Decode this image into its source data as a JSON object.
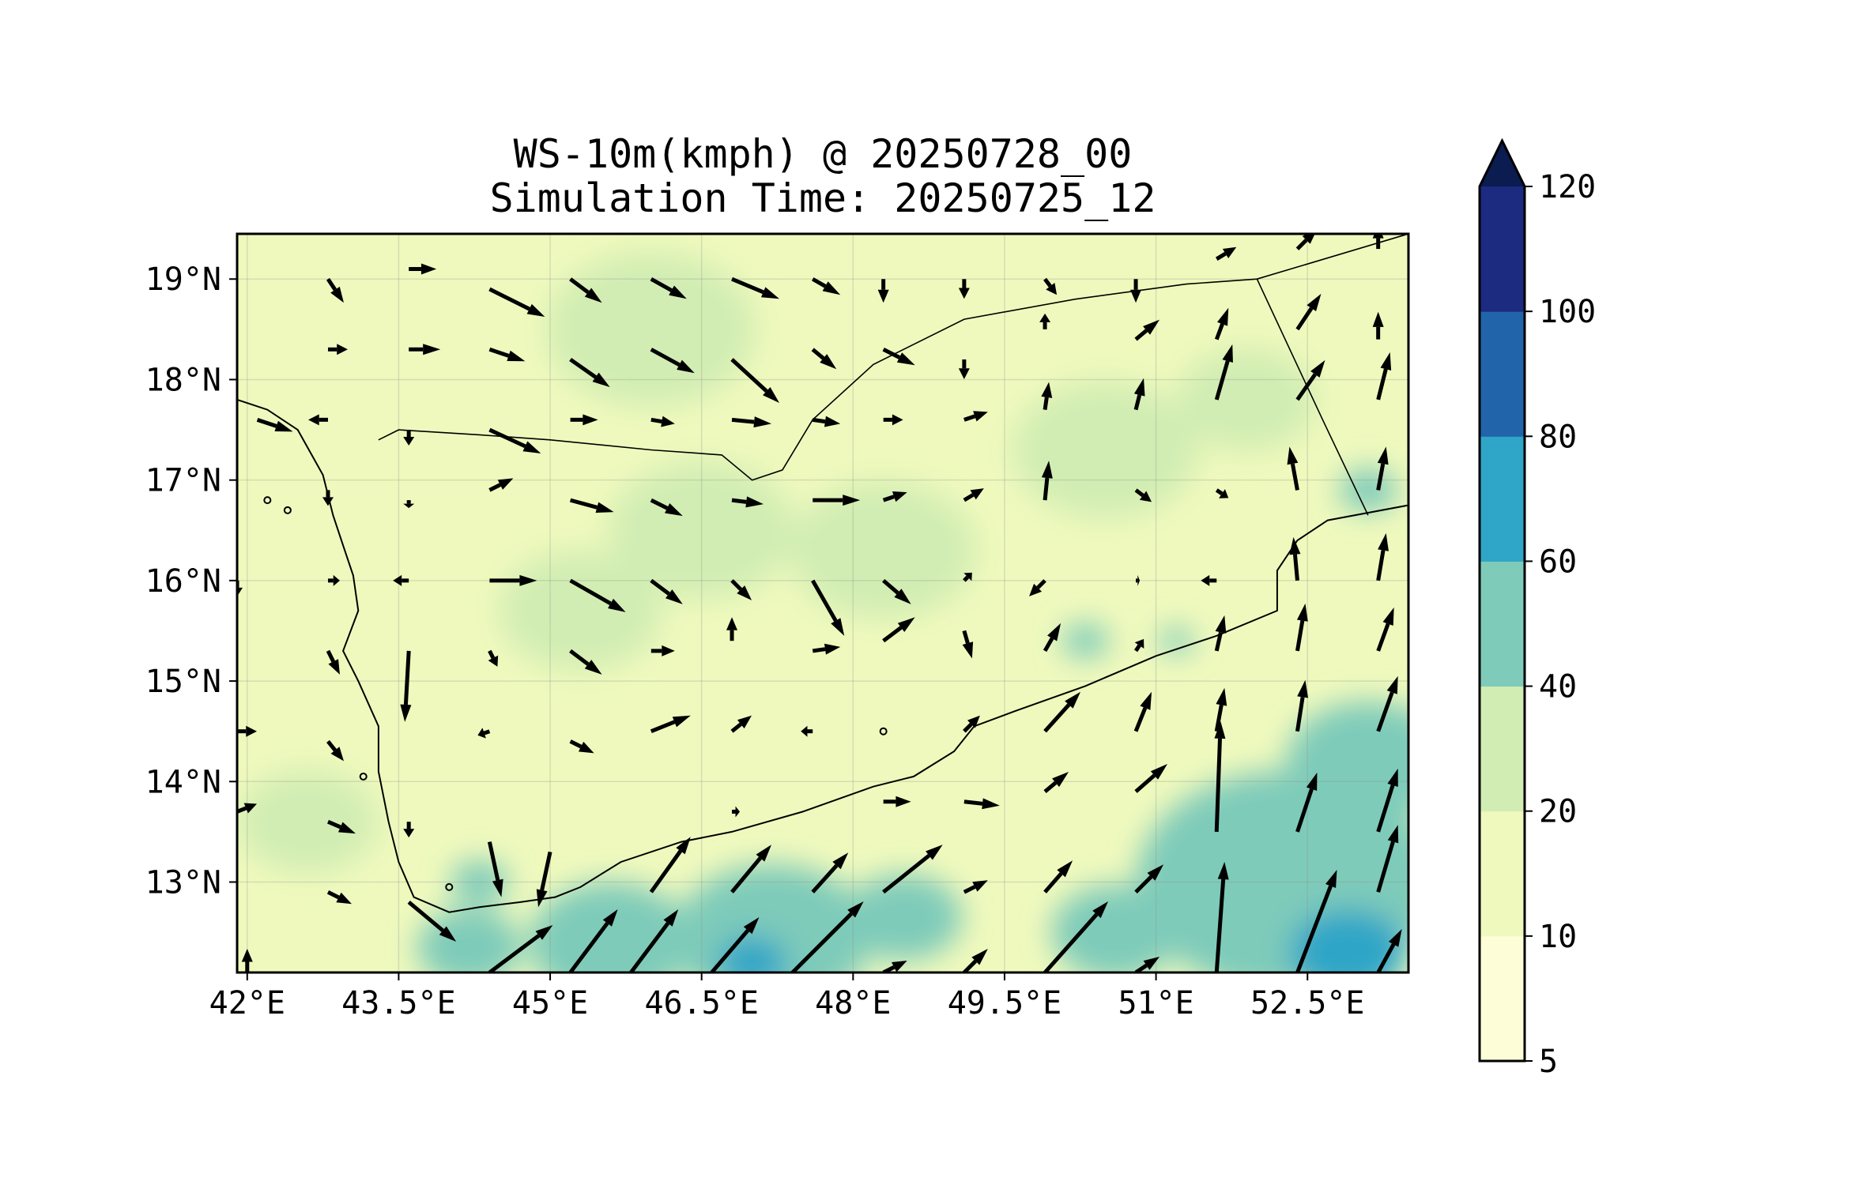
{
  "title": {
    "line1": "WS-10m(kmph) @ 20250728_00",
    "line2": "Simulation Time: 20250725_12"
  },
  "map": {
    "lon_range": [
      41.9,
      53.5
    ],
    "lat_range": [
      12.1,
      19.45
    ],
    "x_ticks": [
      {
        "value": 42.0,
        "label": "42°E"
      },
      {
        "value": 43.5,
        "label": "43.5°E"
      },
      {
        "value": 45.0,
        "label": "45°E"
      },
      {
        "value": 46.5,
        "label": "46.5°E"
      },
      {
        "value": 48.0,
        "label": "48°E"
      },
      {
        "value": 49.5,
        "label": "49.5°E"
      },
      {
        "value": 51.0,
        "label": "51°E"
      },
      {
        "value": 52.5,
        "label": "52.5°E"
      }
    ],
    "y_ticks": [
      {
        "value": 19,
        "label": "19°N"
      },
      {
        "value": 18,
        "label": "18°N"
      },
      {
        "value": 17,
        "label": "17°N"
      },
      {
        "value": 16,
        "label": "16°N"
      },
      {
        "value": 15,
        "label": "15°N"
      },
      {
        "value": 14,
        "label": "14°N"
      },
      {
        "value": 13,
        "label": "13°N"
      }
    ],
    "coastline": [
      [
        41.9,
        17.8
      ],
      [
        42.2,
        17.7
      ],
      [
        42.5,
        17.5
      ],
      [
        42.75,
        17.05
      ],
      [
        42.85,
        16.65
      ],
      [
        42.95,
        16.35
      ],
      [
        43.05,
        16.05
      ],
      [
        43.1,
        15.7
      ],
      [
        42.95,
        15.3
      ],
      [
        43.1,
        15.0
      ],
      [
        43.3,
        14.55
      ],
      [
        43.3,
        14.1
      ],
      [
        43.4,
        13.6
      ],
      [
        43.5,
        13.2
      ],
      [
        43.65,
        12.85
      ],
      [
        44.0,
        12.7
      ],
      [
        44.3,
        12.75
      ],
      [
        44.7,
        12.8
      ],
      [
        45.05,
        12.85
      ],
      [
        45.3,
        12.95
      ],
      [
        45.7,
        13.2
      ],
      [
        46.3,
        13.4
      ],
      [
        46.8,
        13.5
      ],
      [
        47.5,
        13.7
      ],
      [
        48.2,
        13.95
      ],
      [
        48.6,
        14.05
      ],
      [
        49.0,
        14.3
      ],
      [
        49.2,
        14.55
      ],
      [
        49.6,
        14.7
      ],
      [
        50.3,
        14.95
      ],
      [
        51.0,
        15.25
      ],
      [
        51.6,
        15.45
      ],
      [
        52.2,
        15.7
      ],
      [
        52.2,
        16.1
      ],
      [
        52.4,
        16.4
      ],
      [
        52.7,
        16.6
      ],
      [
        53.5,
        16.75
      ]
    ],
    "borders": [
      [
        [
          43.3,
          17.4
        ],
        [
          43.5,
          17.5
        ],
        [
          44.3,
          17.45
        ],
        [
          45.0,
          17.4
        ],
        [
          46.0,
          17.3
        ],
        [
          46.7,
          17.25
        ],
        [
          47.0,
          17.0
        ],
        [
          47.3,
          17.1
        ],
        [
          47.6,
          17.6
        ],
        [
          48.2,
          18.15
        ],
        [
          49.1,
          18.6
        ],
        [
          50.2,
          18.8
        ],
        [
          51.3,
          18.95
        ],
        [
          52.0,
          19.0
        ],
        [
          53.5,
          19.45
        ]
      ],
      [
        [
          52.0,
          19.0
        ],
        [
          52.65,
          17.6
        ],
        [
          53.1,
          16.65
        ]
      ]
    ],
    "islands": [
      [
        42.2,
        16.8
      ],
      [
        42.4,
        16.7
      ],
      [
        44.0,
        12.95
      ],
      [
        48.3,
        14.5
      ],
      [
        43.15,
        14.05
      ]
    ],
    "speed_patches": [
      {
        "lon": 44.2,
        "lat": 12.35,
        "r": 0.45,
        "speed": 45
      },
      {
        "lon": 45.6,
        "lat": 12.4,
        "r": 0.7,
        "speed": 50
      },
      {
        "lon": 47.2,
        "lat": 12.45,
        "r": 0.85,
        "speed": 50
      },
      {
        "lon": 48.5,
        "lat": 12.65,
        "r": 0.5,
        "speed": 45
      },
      {
        "lon": 47.0,
        "lat": 12.2,
        "r": 0.3,
        "speed": 65
      },
      {
        "lon": 52.3,
        "lat": 13.0,
        "r": 1.3,
        "speed": 50
      },
      {
        "lon": 53.1,
        "lat": 14.2,
        "r": 0.7,
        "speed": 45
      },
      {
        "lon": 52.9,
        "lat": 12.3,
        "r": 0.5,
        "speed": 65
      },
      {
        "lon": 50.6,
        "lat": 12.5,
        "r": 0.55,
        "speed": 40
      },
      {
        "lon": 44.3,
        "lat": 13.0,
        "r": 0.25,
        "speed": 45
      },
      {
        "lon": 51.9,
        "lat": 17.8,
        "r": 0.6,
        "speed": 30
      },
      {
        "lon": 50.5,
        "lat": 17.3,
        "r": 0.8,
        "speed": 25
      },
      {
        "lon": 46.0,
        "lat": 18.5,
        "r": 0.9,
        "speed": 25
      },
      {
        "lon": 46.5,
        "lat": 16.5,
        "r": 0.8,
        "speed": 25
      },
      {
        "lon": 48.3,
        "lat": 16.3,
        "r": 0.8,
        "speed": 25
      },
      {
        "lon": 45.3,
        "lat": 15.7,
        "r": 0.7,
        "speed": 25
      },
      {
        "lon": 42.6,
        "lat": 13.6,
        "r": 0.6,
        "speed": 25
      },
      {
        "lon": 53.1,
        "lat": 16.9,
        "r": 0.25,
        "speed": 45
      },
      {
        "lon": 51.2,
        "lat": 15.4,
        "r": 0.15,
        "speed": 45
      },
      {
        "lon": 50.3,
        "lat": 15.4,
        "r": 0.2,
        "speed": 45
      }
    ],
    "wind_vectors": [
      {
        "lon": 42.8,
        "lat": 19.0,
        "u": 0.2,
        "v": -0.3
      },
      {
        "lon": 43.6,
        "lat": 19.1,
        "u": 0.35,
        "v": 0.0
      },
      {
        "lon": 44.4,
        "lat": 18.9,
        "u": 0.7,
        "v": -0.35
      },
      {
        "lon": 45.2,
        "lat": 19.0,
        "u": 0.4,
        "v": -0.3
      },
      {
        "lon": 46.0,
        "lat": 19.0,
        "u": 0.45,
        "v": -0.25
      },
      {
        "lon": 46.8,
        "lat": 19.0,
        "u": 0.6,
        "v": -0.25
      },
      {
        "lon": 47.6,
        "lat": 19.0,
        "u": 0.35,
        "v": -0.2
      },
      {
        "lon": 48.3,
        "lat": 19.0,
        "u": 0.0,
        "v": -0.3
      },
      {
        "lon": 49.1,
        "lat": 19.0,
        "u": 0.0,
        "v": -0.25
      },
      {
        "lon": 49.9,
        "lat": 19.0,
        "u": 0.15,
        "v": -0.2
      },
      {
        "lon": 50.8,
        "lat": 19.0,
        "u": 0.0,
        "v": -0.3
      },
      {
        "lon": 51.6,
        "lat": 19.2,
        "u": 0.25,
        "v": 0.15
      },
      {
        "lon": 52.4,
        "lat": 19.3,
        "u": 0.25,
        "v": 0.25
      },
      {
        "lon": 53.2,
        "lat": 19.3,
        "u": 0.0,
        "v": 0.3
      },
      {
        "lon": 42.8,
        "lat": 18.3,
        "u": 0.25,
        "v": 0.0
      },
      {
        "lon": 43.6,
        "lat": 18.3,
        "u": 0.4,
        "v": 0.0
      },
      {
        "lon": 44.4,
        "lat": 18.3,
        "u": 0.45,
        "v": -0.15
      },
      {
        "lon": 45.2,
        "lat": 18.2,
        "u": 0.5,
        "v": -0.35
      },
      {
        "lon": 46.0,
        "lat": 18.3,
        "u": 0.55,
        "v": -0.3
      },
      {
        "lon": 46.8,
        "lat": 18.2,
        "u": 0.6,
        "v": -0.55
      },
      {
        "lon": 47.6,
        "lat": 18.3,
        "u": 0.3,
        "v": -0.25
      },
      {
        "lon": 48.3,
        "lat": 18.3,
        "u": 0.4,
        "v": -0.2
      },
      {
        "lon": 49.1,
        "lat": 18.2,
        "u": 0.0,
        "v": -0.25
      },
      {
        "lon": 49.9,
        "lat": 18.5,
        "u": 0.0,
        "v": 0.2
      },
      {
        "lon": 50.8,
        "lat": 18.4,
        "u": 0.3,
        "v": 0.25
      },
      {
        "lon": 51.6,
        "lat": 18.4,
        "u": 0.15,
        "v": 0.4
      },
      {
        "lon": 52.4,
        "lat": 18.5,
        "u": 0.3,
        "v": 0.45
      },
      {
        "lon": 53.2,
        "lat": 18.4,
        "u": 0.0,
        "v": 0.35
      },
      {
        "lon": 42.1,
        "lat": 17.6,
        "u": 0.45,
        "v": -0.15
      },
      {
        "lon": 42.8,
        "lat": 17.6,
        "u": -0.25,
        "v": 0.0
      },
      {
        "lon": 43.6,
        "lat": 17.5,
        "u": 0.0,
        "v": -0.2
      },
      {
        "lon": 44.4,
        "lat": 17.5,
        "u": 0.65,
        "v": -0.3
      },
      {
        "lon": 45.2,
        "lat": 17.6,
        "u": 0.35,
        "v": 0.0
      },
      {
        "lon": 46.0,
        "lat": 17.6,
        "u": 0.3,
        "v": -0.05
      },
      {
        "lon": 46.8,
        "lat": 17.6,
        "u": 0.5,
        "v": -0.05
      },
      {
        "lon": 47.6,
        "lat": 17.6,
        "u": 0.35,
        "v": -0.05
      },
      {
        "lon": 48.3,
        "lat": 17.6,
        "u": 0.25,
        "v": 0.0
      },
      {
        "lon": 49.1,
        "lat": 17.6,
        "u": 0.3,
        "v": 0.1
      },
      {
        "lon": 49.9,
        "lat": 17.7,
        "u": 0.05,
        "v": 0.35
      },
      {
        "lon": 50.8,
        "lat": 17.7,
        "u": 0.1,
        "v": 0.4
      },
      {
        "lon": 51.6,
        "lat": 17.8,
        "u": 0.2,
        "v": 0.7
      },
      {
        "lon": 52.4,
        "lat": 17.8,
        "u": 0.35,
        "v": 0.5
      },
      {
        "lon": 53.2,
        "lat": 17.8,
        "u": 0.15,
        "v": 0.6
      },
      {
        "lon": 42.8,
        "lat": 16.9,
        "u": 0.0,
        "v": -0.2
      },
      {
        "lon": 43.6,
        "lat": 16.8,
        "u": 0.0,
        "v": -0.1
      },
      {
        "lon": 44.4,
        "lat": 16.9,
        "u": 0.3,
        "v": 0.15
      },
      {
        "lon": 45.2,
        "lat": 16.8,
        "u": 0.55,
        "v": -0.15
      },
      {
        "lon": 46.0,
        "lat": 16.8,
        "u": 0.4,
        "v": -0.2
      },
      {
        "lon": 46.8,
        "lat": 16.8,
        "u": 0.4,
        "v": -0.05
      },
      {
        "lon": 47.6,
        "lat": 16.8,
        "u": 0.6,
        "v": 0.0
      },
      {
        "lon": 48.3,
        "lat": 16.8,
        "u": 0.3,
        "v": 0.1
      },
      {
        "lon": 49.1,
        "lat": 16.8,
        "u": 0.25,
        "v": 0.15
      },
      {
        "lon": 49.9,
        "lat": 16.8,
        "u": 0.05,
        "v": 0.5
      },
      {
        "lon": 50.8,
        "lat": 16.9,
        "u": 0.2,
        "v": -0.15
      },
      {
        "lon": 51.6,
        "lat": 16.9,
        "u": 0.15,
        "v": -0.1
      },
      {
        "lon": 52.4,
        "lat": 16.9,
        "u": -0.1,
        "v": 0.55
      },
      {
        "lon": 53.2,
        "lat": 16.9,
        "u": 0.1,
        "v": 0.55
      },
      {
        "lon": 41.9,
        "lat": 16.0,
        "u": 0.0,
        "v": -0.2
      },
      {
        "lon": 42.8,
        "lat": 16.0,
        "u": 0.15,
        "v": 0.0
      },
      {
        "lon": 43.6,
        "lat": 16.0,
        "u": -0.2,
        "v": 0.0
      },
      {
        "lon": 44.4,
        "lat": 16.0,
        "u": 0.6,
        "v": 0.0
      },
      {
        "lon": 45.2,
        "lat": 16.0,
        "u": 0.7,
        "v": -0.4
      },
      {
        "lon": 46.0,
        "lat": 16.0,
        "u": 0.4,
        "v": -0.3
      },
      {
        "lon": 46.8,
        "lat": 16.0,
        "u": 0.25,
        "v": -0.25
      },
      {
        "lon": 47.6,
        "lat": 16.0,
        "u": 0.4,
        "v": -0.7
      },
      {
        "lon": 48.3,
        "lat": 16.0,
        "u": 0.35,
        "v": -0.3
      },
      {
        "lon": 49.1,
        "lat": 16.0,
        "u": 0.1,
        "v": 0.1
      },
      {
        "lon": 49.9,
        "lat": 16.0,
        "u": -0.2,
        "v": -0.2
      },
      {
        "lon": 50.8,
        "lat": 16.0,
        "u": 0.05,
        "v": 0.0
      },
      {
        "lon": 51.6,
        "lat": 16.0,
        "u": -0.2,
        "v": 0.0
      },
      {
        "lon": 52.4,
        "lat": 16.0,
        "u": -0.05,
        "v": 0.55
      },
      {
        "lon": 53.2,
        "lat": 16.0,
        "u": 0.1,
        "v": 0.6
      },
      {
        "lon": 42.8,
        "lat": 15.3,
        "u": 0.15,
        "v": -0.3
      },
      {
        "lon": 43.6,
        "lat": 15.3,
        "u": -0.05,
        "v": -0.9
      },
      {
        "lon": 44.4,
        "lat": 15.3,
        "u": 0.1,
        "v": -0.2
      },
      {
        "lon": 45.2,
        "lat": 15.3,
        "u": 0.4,
        "v": -0.3
      },
      {
        "lon": 46.0,
        "lat": 15.3,
        "u": 0.3,
        "v": 0.0
      },
      {
        "lon": 46.8,
        "lat": 15.4,
        "u": 0.0,
        "v": 0.3
      },
      {
        "lon": 47.6,
        "lat": 15.3,
        "u": 0.35,
        "v": 0.05
      },
      {
        "lon": 48.3,
        "lat": 15.4,
        "u": 0.4,
        "v": 0.3
      },
      {
        "lon": 49.1,
        "lat": 15.5,
        "u": 0.1,
        "v": -0.35
      },
      {
        "lon": 49.9,
        "lat": 15.3,
        "u": 0.2,
        "v": 0.35
      },
      {
        "lon": 50.8,
        "lat": 15.3,
        "u": 0.1,
        "v": 0.15
      },
      {
        "lon": 51.6,
        "lat": 15.3,
        "u": 0.1,
        "v": 0.45
      },
      {
        "lon": 52.4,
        "lat": 15.3,
        "u": 0.1,
        "v": 0.6
      },
      {
        "lon": 53.2,
        "lat": 15.3,
        "u": 0.2,
        "v": 0.55
      },
      {
        "lon": 41.9,
        "lat": 14.5,
        "u": 0.25,
        "v": 0.0
      },
      {
        "lon": 42.8,
        "lat": 14.4,
        "u": 0.2,
        "v": -0.25
      },
      {
        "lon": 44.4,
        "lat": 14.5,
        "u": -0.15,
        "v": -0.05
      },
      {
        "lon": 45.2,
        "lat": 14.4,
        "u": 0.3,
        "v": -0.15
      },
      {
        "lon": 46.0,
        "lat": 14.5,
        "u": 0.5,
        "v": 0.2
      },
      {
        "lon": 46.8,
        "lat": 14.5,
        "u": 0.25,
        "v": 0.2
      },
      {
        "lon": 47.6,
        "lat": 14.5,
        "u": -0.15,
        "v": 0.0
      },
      {
        "lon": 49.1,
        "lat": 14.5,
        "u": 0.2,
        "v": 0.2
      },
      {
        "lon": 49.9,
        "lat": 14.5,
        "u": 0.45,
        "v": 0.5
      },
      {
        "lon": 50.8,
        "lat": 14.5,
        "u": 0.2,
        "v": 0.5
      },
      {
        "lon": 51.6,
        "lat": 14.5,
        "u": 0.1,
        "v": 0.55
      },
      {
        "lon": 52.4,
        "lat": 14.5,
        "u": 0.1,
        "v": 0.65
      },
      {
        "lon": 53.2,
        "lat": 14.5,
        "u": 0.25,
        "v": 0.7
      },
      {
        "lon": 41.9,
        "lat": 13.7,
        "u": 0.25,
        "v": 0.1
      },
      {
        "lon": 42.8,
        "lat": 13.6,
        "u": 0.35,
        "v": -0.15
      },
      {
        "lon": 43.6,
        "lat": 13.6,
        "u": 0.0,
        "v": -0.2
      },
      {
        "lon": 44.4,
        "lat": 13.4,
        "u": 0.15,
        "v": -0.7
      },
      {
        "lon": 45.0,
        "lat": 13.3,
        "u": -0.15,
        "v": -0.7
      },
      {
        "lon": 46.8,
        "lat": 13.7,
        "u": 0.1,
        "v": 0.0
      },
      {
        "lon": 48.3,
        "lat": 13.8,
        "u": 0.35,
        "v": 0.0
      },
      {
        "lon": 49.1,
        "lat": 13.8,
        "u": 0.45,
        "v": -0.05
      },
      {
        "lon": 49.9,
        "lat": 13.9,
        "u": 0.3,
        "v": 0.25
      },
      {
        "lon": 50.8,
        "lat": 13.9,
        "u": 0.4,
        "v": 0.35
      },
      {
        "lon": 51.6,
        "lat": 13.5,
        "u": 0.05,
        "v": 1.4
      },
      {
        "lon": 52.4,
        "lat": 13.5,
        "u": 0.25,
        "v": 0.75
      },
      {
        "lon": 53.2,
        "lat": 13.5,
        "u": 0.25,
        "v": 0.8
      },
      {
        "lon": 42.8,
        "lat": 12.9,
        "u": 0.3,
        "v": -0.15
      },
      {
        "lon": 43.6,
        "lat": 12.8,
        "u": 0.6,
        "v": -0.5
      },
      {
        "lon": 44.4,
        "lat": 12.1,
        "u": 0.8,
        "v": 0.6
      },
      {
        "lon": 45.2,
        "lat": 12.1,
        "u": 0.6,
        "v": 0.8
      },
      {
        "lon": 46.0,
        "lat": 12.9,
        "u": 0.5,
        "v": 0.7
      },
      {
        "lon": 46.8,
        "lat": 12.9,
        "u": 0.5,
        "v": 0.6
      },
      {
        "lon": 47.6,
        "lat": 12.9,
        "u": 0.45,
        "v": 0.5
      },
      {
        "lon": 48.3,
        "lat": 12.9,
        "u": 0.75,
        "v": 0.6
      },
      {
        "lon": 49.1,
        "lat": 12.9,
        "u": 0.3,
        "v": 0.15
      },
      {
        "lon": 49.9,
        "lat": 12.9,
        "u": 0.35,
        "v": 0.4
      },
      {
        "lon": 50.8,
        "lat": 12.9,
        "u": 0.35,
        "v": 0.35
      },
      {
        "lon": 51.6,
        "lat": 12.1,
        "u": 0.1,
        "v": 1.4
      },
      {
        "lon": 52.4,
        "lat": 12.1,
        "u": 0.5,
        "v": 1.3
      },
      {
        "lon": 53.2,
        "lat": 12.9,
        "u": 0.25,
        "v": 0.85
      },
      {
        "lon": 42.0,
        "lat": 12.1,
        "u": 0.0,
        "v": 0.3
      },
      {
        "lon": 45.8,
        "lat": 12.1,
        "u": 0.6,
        "v": 0.8
      },
      {
        "lon": 46.6,
        "lat": 12.1,
        "u": 0.6,
        "v": 0.7
      },
      {
        "lon": 47.4,
        "lat": 12.1,
        "u": 0.9,
        "v": 0.9
      },
      {
        "lon": 48.3,
        "lat": 12.1,
        "u": 0.3,
        "v": 0.15
      },
      {
        "lon": 49.1,
        "lat": 12.1,
        "u": 0.3,
        "v": 0.3
      },
      {
        "lon": 49.9,
        "lat": 12.1,
        "u": 0.8,
        "v": 0.9
      },
      {
        "lon": 50.8,
        "lat": 12.1,
        "u": 0.3,
        "v": 0.2
      },
      {
        "lon": 53.2,
        "lat": 12.1,
        "u": 0.3,
        "v": 0.55
      }
    ]
  },
  "colorbar": {
    "levels": [
      "5",
      "10",
      "20",
      "40",
      "60",
      "80",
      "100",
      "120"
    ],
    "colors": [
      "#fdfed8",
      "#eff9bd",
      "#d1edb3",
      "#7ecbba",
      "#2fa5c7",
      "#2164aa",
      "#1c2a80",
      "#0a1c50"
    ],
    "extend": "max"
  }
}
